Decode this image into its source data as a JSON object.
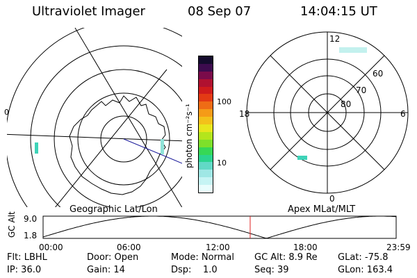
{
  "header": {
    "title": "Ultraviolet Imager",
    "date": "08 Sep 07",
    "time": "14:04:15 UT"
  },
  "left_map": {
    "caption": "Geographic Lat/Lon",
    "side_label": "0"
  },
  "colorbar": {
    "unit_label": "photon cm⁻²s⁻¹",
    "ticks": [
      "100",
      "10"
    ],
    "colors": [
      "#e9fdfd",
      "#c6f4f4",
      "#9fe7e5",
      "#62d9c6",
      "#2bd48f",
      "#36d856",
      "#7ee02a",
      "#b4e51c",
      "#e8e61d",
      "#f3c11a",
      "#f59b17",
      "#ef6c15",
      "#e33a14",
      "#cf1b1c",
      "#b01130",
      "#7a0b4a",
      "#3d0b4e",
      "#140b2d"
    ]
  },
  "right_map": {
    "caption": "Apex MLat/MLT",
    "mlt_labels": [
      "12",
      "18",
      "6",
      "0"
    ],
    "lat_labels": [
      "60",
      "70",
      "80"
    ]
  },
  "altitude_strip": {
    "ylabel": "GC Alt",
    "yticks": [
      "9.0",
      "1.8"
    ],
    "xticks": [
      "00:00",
      "06:00",
      "12:00",
      "18:00",
      "23:59"
    ],
    "marker_time": "14:04",
    "marker_color": "#e02020"
  },
  "info": {
    "flt": "Flt: LBHL",
    "door": "Door: Open",
    "mode": "Mode: Normal",
    "gc_alt": "GC Alt: 8.9 Re",
    "glat": "GLat: -75.8",
    "ip": "IP: 36.0",
    "gain": "Gain: 14",
    "dsp": "Dsp:    1.0",
    "seq": "Seq: 39",
    "glon": "GLon: 163.4"
  }
}
